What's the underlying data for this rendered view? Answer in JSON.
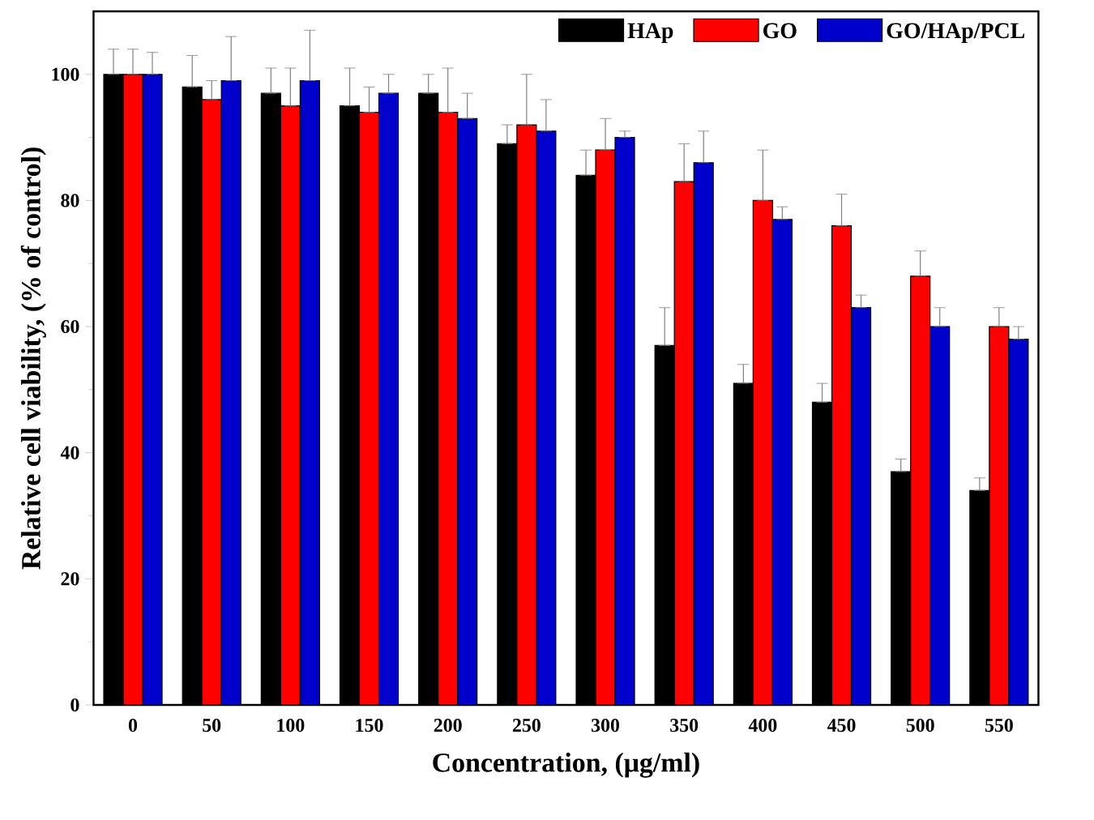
{
  "chart_data": {
    "type": "bar",
    "xlabel": "Concentration, (μg/ml)",
    "ylabel": "Relative cell viability, (% of control)",
    "categories": [
      "0",
      "50",
      "100",
      "150",
      "200",
      "250",
      "300",
      "350",
      "400",
      "450",
      "500",
      "550"
    ],
    "ylim": [
      0,
      110
    ],
    "yticks": [
      0,
      {
        "value": 10,
        "label": null
      },
      20,
      {
        "value": 30,
        "label": null
      },
      40,
      {
        "value": 50,
        "label": null
      },
      60,
      {
        "value": 70,
        "label": null
      },
      80,
      {
        "value": 90,
        "label": null
      },
      100
    ],
    "legend": "top right",
    "series": [
      {
        "name": "HAp",
        "color": "#000000",
        "values": [
          100,
          98,
          97,
          95,
          97,
          89,
          84,
          57,
          51,
          48,
          37,
          34
        ],
        "errors": [
          [
            100,
            104
          ],
          [
            98,
            103
          ],
          [
            97,
            101
          ],
          [
            95,
            101
          ],
          [
            97,
            100
          ],
          [
            89,
            92
          ],
          [
            84,
            88
          ],
          [
            57,
            63
          ],
          [
            51,
            54
          ],
          [
            48,
            51
          ],
          [
            37,
            39
          ],
          [
            34,
            36
          ]
        ]
      },
      {
        "name": "GO",
        "color": "#ff0000",
        "values": [
          100,
          96,
          95,
          94,
          94,
          92,
          88,
          83,
          80,
          76,
          68,
          60
        ],
        "errors": [
          [
            100,
            104
          ],
          [
            96,
            99
          ],
          [
            95,
            101
          ],
          [
            94,
            98
          ],
          [
            94,
            101
          ],
          [
            92,
            100
          ],
          [
            88,
            93
          ],
          [
            83,
            89
          ],
          [
            80,
            88
          ],
          [
            76,
            81
          ],
          [
            68,
            72
          ],
          [
            60,
            63
          ]
        ]
      },
      {
        "name": "GO/HAp/PCL",
        "color": "#0000cc",
        "values": [
          100,
          99,
          99,
          97,
          93,
          91,
          90,
          86,
          77,
          63,
          60,
          58
        ],
        "errors": [
          [
            100,
            103.5
          ],
          [
            99,
            106
          ],
          [
            99,
            107
          ],
          [
            97,
            100
          ],
          [
            93,
            97
          ],
          [
            91,
            96
          ],
          [
            90,
            91
          ],
          [
            86,
            91
          ],
          [
            77,
            79
          ],
          [
            63,
            65
          ],
          [
            60,
            63
          ],
          [
            58,
            60
          ]
        ]
      }
    ]
  }
}
